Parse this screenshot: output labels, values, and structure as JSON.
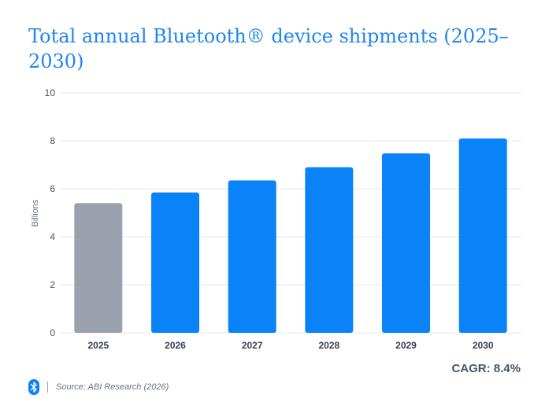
{
  "chart_data": {
    "type": "bar",
    "title": "Total annual Bluetooth® device shipments (2025–2030)",
    "ylabel": "Billions",
    "xlabel": "",
    "categories": [
      "2025",
      "2026",
      "2027",
      "2028",
      "2029",
      "2030"
    ],
    "values": [
      5.4,
      5.85,
      6.35,
      6.9,
      7.48,
      8.1
    ],
    "ylim": [
      0,
      10
    ],
    "yticks": [
      0,
      2,
      4,
      6,
      8,
      10
    ],
    "grid": true,
    "colors": {
      "highlight": "#9aa1ad",
      "bar": "#0a82f8",
      "title": "#1f86ee"
    },
    "annotation": "CAGR: 8.4%"
  },
  "footer": {
    "icon": "bluetooth-icon",
    "source": "Source: ABI Research (2026)"
  }
}
